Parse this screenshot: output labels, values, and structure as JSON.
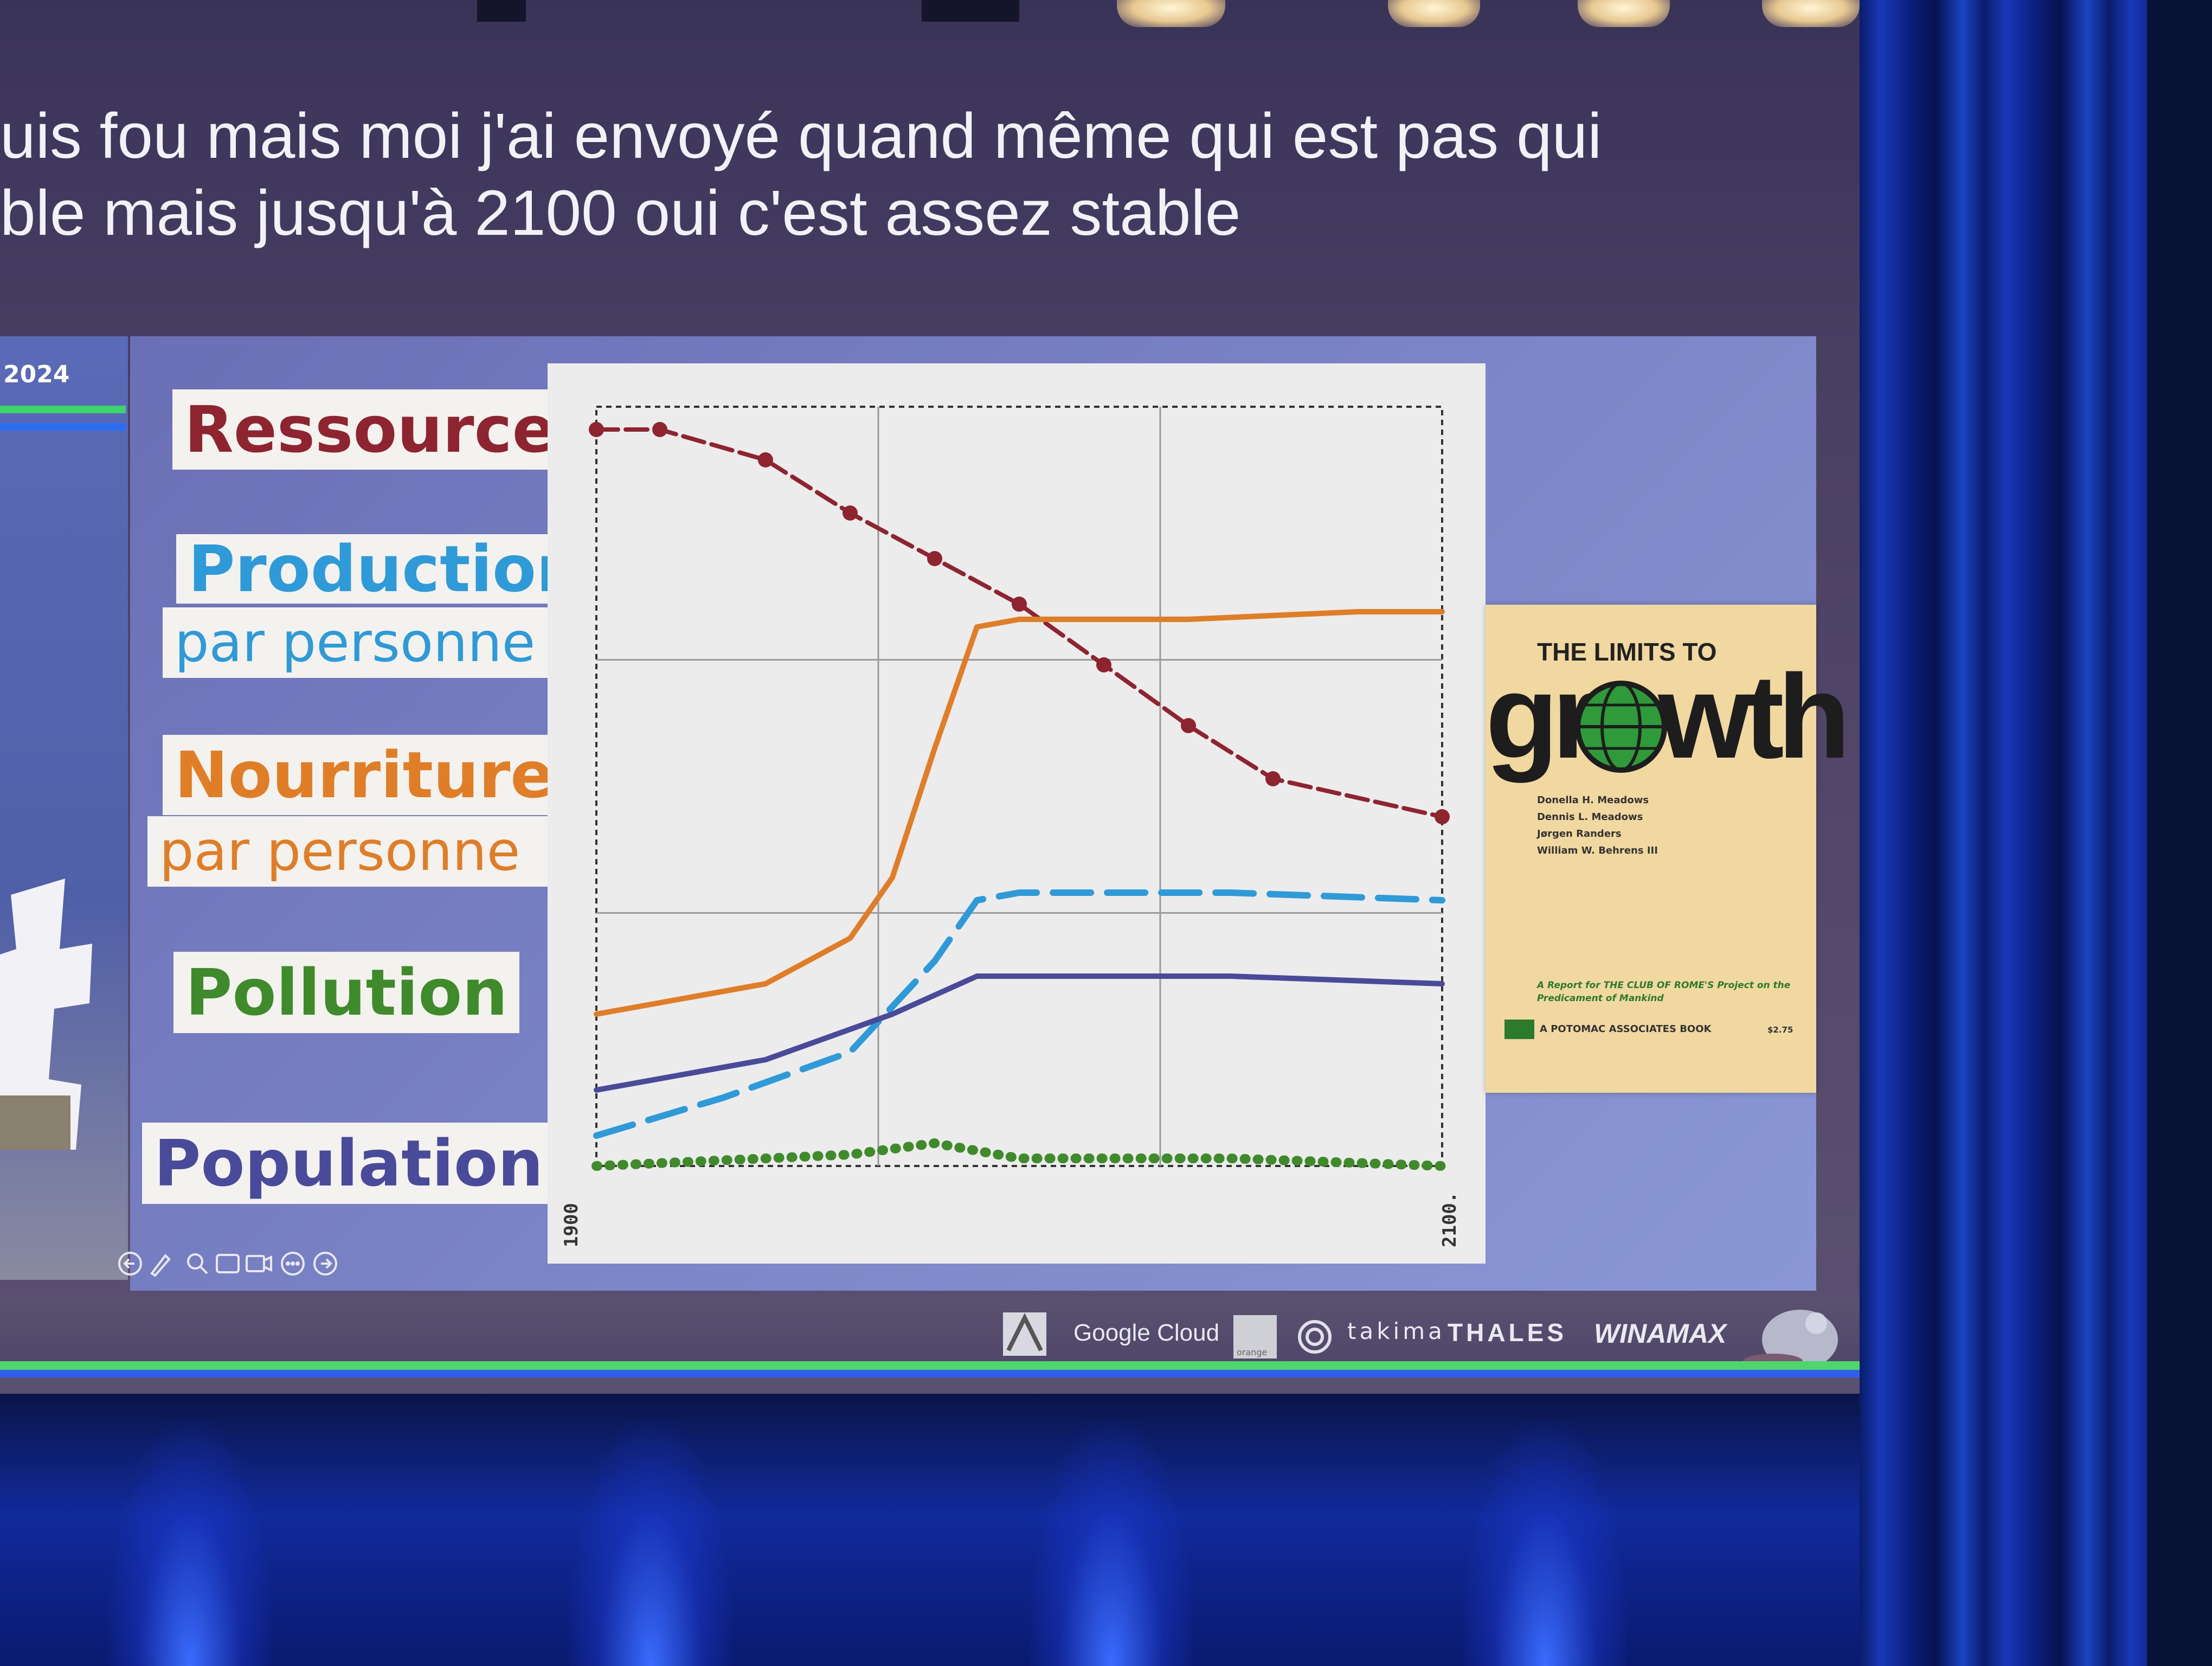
{
  "caption": {
    "line1": "uis fou mais moi j'ai envoyé quand même qui est pas qui",
    "line2": "ble mais jusqu'à 2100 oui c'est assez stable"
  },
  "slide": {
    "year_badge": "2024",
    "labels": {
      "ressources": "Ressources",
      "production": "Production",
      "production_sub": "par personne",
      "nourriture": "Nourriture",
      "nourriture_sub": "par personne",
      "pollution": "Pollution",
      "population": "Population"
    },
    "colors": {
      "ressources": "#8e2430",
      "production": "#2e9ad8",
      "nourriture": "#e07d27",
      "pollution": "#3f8a2a",
      "population": "#4a4a9a"
    }
  },
  "chart_data": {
    "type": "line",
    "x_tick_labels": [
      "1900",
      "2100."
    ],
    "xlim": [
      1900,
      2100
    ],
    "grid": true,
    "series": [
      {
        "color": "#8e2430",
        "style": "dashed-with-dots",
        "x": [
          1900,
          1915,
          1940,
          1960,
          1980,
          2000,
          2020,
          2040,
          2060,
          2100
        ],
        "y": [
          0.97,
          0.97,
          0.93,
          0.86,
          0.8,
          0.74,
          0.66,
          0.58,
          0.51,
          0.46
        ]
      },
      {
        "color": "#e07d27",
        "style": "solid",
        "x": [
          1900,
          1920,
          1940,
          1960,
          1970,
          1980,
          1990,
          2000,
          2040,
          2080,
          2100
        ],
        "y": [
          0.2,
          0.22,
          0.24,
          0.3,
          0.38,
          0.55,
          0.71,
          0.72,
          0.72,
          0.73,
          0.73
        ]
      },
      {
        "color": "#2e9ad8",
        "style": "dashed",
        "x": [
          1900,
          1930,
          1960,
          1980,
          1990,
          2000,
          2050,
          2100
        ],
        "y": [
          0.04,
          0.09,
          0.15,
          0.27,
          0.35,
          0.36,
          0.36,
          0.35
        ]
      },
      {
        "color": "#4a4a9a",
        "style": "solid",
        "x": [
          1900,
          1940,
          1970,
          1990,
          2000,
          2050,
          2100
        ],
        "y": [
          0.1,
          0.14,
          0.2,
          0.25,
          0.25,
          0.25,
          0.24
        ]
      },
      {
        "color": "#3f8a2a",
        "style": "dotted-thick",
        "x": [
          1900,
          1940,
          1960,
          1980,
          1990,
          2000,
          2050,
          2100
        ],
        "y": [
          0.0,
          0.01,
          0.015,
          0.03,
          0.02,
          0.01,
          0.01,
          0.0
        ]
      }
    ]
  },
  "book": {
    "title_top": "THE LIMITS TO",
    "title_main": "growth",
    "authors": [
      "Donella H. Meadows",
      "Dennis L. Meadows",
      "Jørgen Randers",
      "William W. Behrens III"
    ],
    "subtitle": "A Report for THE CLUB OF ROME'S Project on the Predicament of Mankind",
    "publisher": "A POTOMAC ASSOCIATES BOOK",
    "price": "$2.75"
  },
  "sponsors": [
    "Google Cloud",
    "orange",
    "takima",
    "THALES",
    "WINAMAX"
  ]
}
